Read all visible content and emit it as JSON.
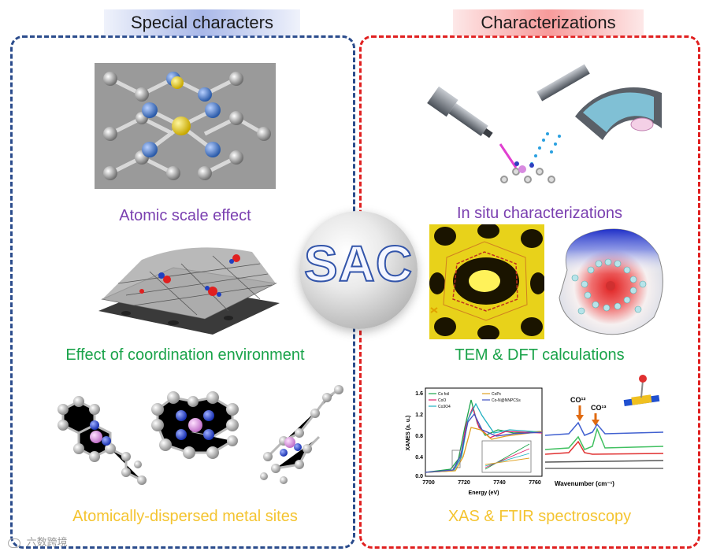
{
  "left_panel": {
    "title": "Special characters",
    "captions": [
      "Atomic scale effect",
      "Effect of coordination environment",
      "Atomically-dispersed metal sites"
    ]
  },
  "right_panel": {
    "title": "Characterizations",
    "captions": [
      "In situ characterizations",
      "TEM & DFT calculations",
      "XAS & FTIR spectroscopy"
    ]
  },
  "center_label": "SAC",
  "xas_plot": {
    "ylabel": "XANES (a. u.)",
    "xlabel": "Energy (eV)",
    "y_ticks": [
      "1.6",
      "1.2",
      "0.8",
      "0.4",
      "0.0"
    ],
    "x_ticks": [
      "7700",
      "7720",
      "7740",
      "7760"
    ],
    "legend": [
      "Co foil",
      "CoO",
      "Co3O4",
      "CoPc",
      "Co-N@NNPCSs"
    ]
  },
  "ftir_plot": {
    "xlabel": "Wavenumber (cm⁻¹)",
    "labels": [
      "CO¹²",
      "CO¹³"
    ]
  },
  "watermark": "六数跨境",
  "colors": {
    "left_border": "#2b4c8c",
    "right_border": "#e02020",
    "purple": "#7a3fb0",
    "green": "#1aa34a",
    "yellow": "#f4c430"
  }
}
